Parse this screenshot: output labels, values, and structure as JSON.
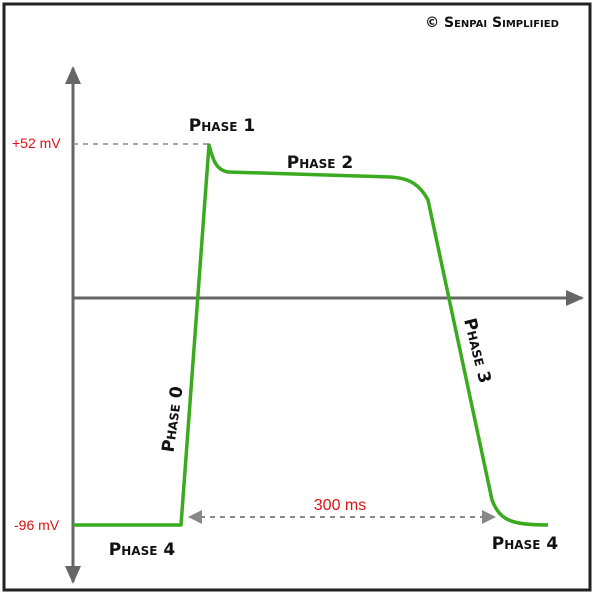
{
  "copyright": "© Senpai Simplified",
  "levels": {
    "peak": "+52 mV",
    "rest": "-96 mV"
  },
  "duration": "300 ms",
  "phases": {
    "phase_0": "Phase 0",
    "phase_1": "Phase 1",
    "phase_2": "Phase 2",
    "phase_3": "Phase 3",
    "phase_4_left": "Phase 4",
    "phase_4_right": "Phase 4"
  }
}
